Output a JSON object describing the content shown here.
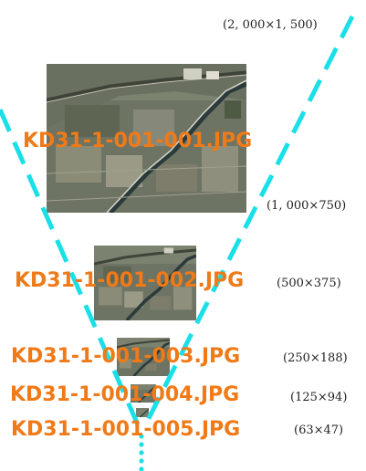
{
  "pyramid": {
    "levels": [
      {
        "dims": "(2, 000×1, 500)"
      },
      {
        "filename": "KD31-1-001-001.JPG",
        "dims": "(1, 000×750)"
      },
      {
        "filename": "KD31-1-001-002.JPG",
        "dims": "(500×375)"
      },
      {
        "filename": "KD31-1-001-003.JPG",
        "dims": "(250×188)"
      },
      {
        "filename": "KD31-1-001-004.JPG",
        "dims": "(125×94)"
      },
      {
        "filename": "KD31-1-001-005.JPG",
        "dims": "(63×47)"
      }
    ]
  },
  "colors": {
    "filename": "#f07a18",
    "guide_lines": "#19e0e8",
    "photo_base": "#6f7468"
  },
  "icons": {
    "photo": "aerial-photo-image",
    "guide": "dashed-v-line"
  }
}
